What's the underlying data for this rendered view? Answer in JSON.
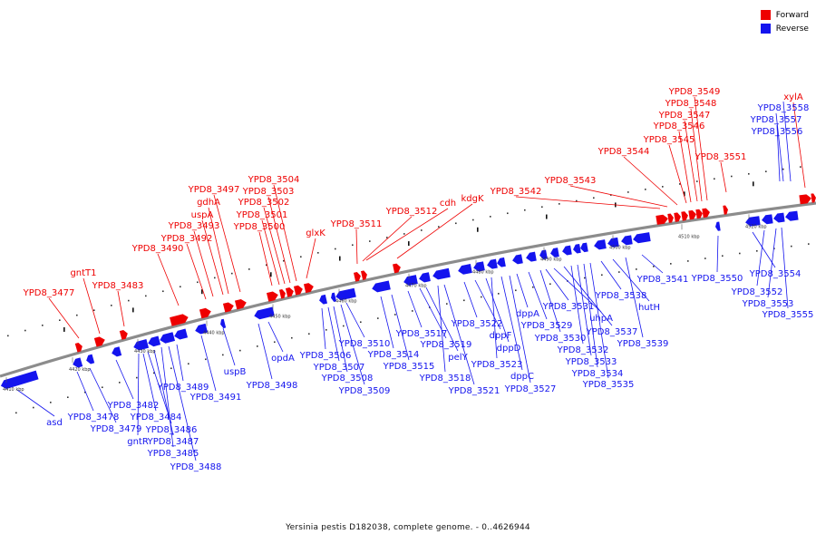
{
  "legend": {
    "forward_label": "Forward",
    "reverse_label": "Reverse",
    "forward_color": "#ee0000",
    "reverse_color": "#1414ee"
  },
  "footer": "Yersinia pestis D182038, complete genome. - 0..4626944",
  "scale": {
    "unit": "kbp",
    "ticks": [
      "4410 kbp",
      "4420 kbp",
      "4430 kbp",
      "4440 kbp",
      "4450 kbp",
      "4460 kbp",
      "4470 kbp",
      "4480 kbp",
      "4490 kbp",
      "4500 kbp",
      "4510 kbp",
      "4520 kbp"
    ]
  },
  "forward_genes": [
    "YPD8_3477",
    "gntT1",
    "YPD8_3483",
    "YPD8_3490",
    "YPD8_3492",
    "YPD8_3493",
    "uspA",
    "gdhA",
    "YPD8_3497",
    "YPD8_3500",
    "YPD8_3501",
    "YPD8_3502",
    "YPD8_3503",
    "YPD8_3504",
    "glxK",
    "YPD8_3511",
    "YPD8_3512",
    "cdh",
    "kdgK",
    "YPD8_3542",
    "YPD8_3543",
    "YPD8_3544",
    "YPD8_3545",
    "YPD8_3546",
    "YPD8_3547",
    "YPD8_3548",
    "YPD8_3549",
    "YPD8_3551",
    "xylA"
  ],
  "reverse_genes": [
    "asd",
    "YPD8_3478",
    "YPD8_3479",
    "YPD8_3482",
    "gntR",
    "YPD8_3484",
    "YPD8_3486",
    "YPD8_3487",
    "YPD8_3485",
    "YPD8_3488",
    "YPD8_3489",
    "YPD8_3491",
    "uspB",
    "YPD8_3498",
    "opdA",
    "YPD8_3506",
    "YPD8_3507",
    "YPD8_3508",
    "YPD8_3509",
    "YPD8_3510",
    "YPD8_3514",
    "YPD8_3515",
    "YPD8_3517",
    "YPD8_3519",
    "pelY",
    "YPD8_3518",
    "YPD8_3521",
    "YPD8_3522",
    "dppF",
    "dppD",
    "YPD8_3523",
    "dppC",
    "YPD8_3527",
    "dppA",
    "YPD8_3529",
    "YPD8_3530",
    "YPD8_3531",
    "uhpA",
    "YPD8_3537",
    "YPD8_3532",
    "YPD8_3533",
    "YPD8_3534",
    "YPD8_3535",
    "YPD8_3538",
    "hutH",
    "YPD8_3539",
    "YPD8_3541",
    "YPD8_3550",
    "YPD8_3554",
    "YPD8_3552",
    "YPD8_3553",
    "YPD8_3555",
    "YPD8_3556",
    "YPD8_3557",
    "YPD8_3558"
  ]
}
